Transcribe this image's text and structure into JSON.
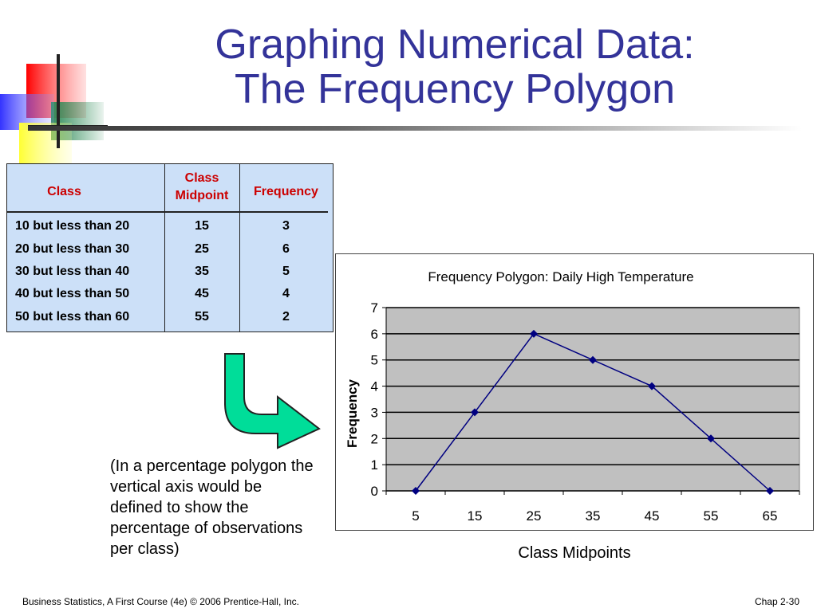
{
  "slide": {
    "title_line1": "Graphing Numerical Data:",
    "title_line2": "The Frequency Polygon",
    "note": "(In a percentage polygon the vertical axis would be defined to show the percentage of observations per class)",
    "footer_left": "Business Statistics, A First Course (4e) © 2006 Prentice-Hall, Inc.",
    "footer_right": "Chap 2-30"
  },
  "table": {
    "headers": {
      "class": "Class",
      "midpoint_line1": "Class",
      "midpoint_line2": "Midpoint",
      "frequency": "Frequency"
    },
    "rows": [
      {
        "class": "10 but less than 20",
        "midpoint": "15",
        "frequency": "3"
      },
      {
        "class": "20 but less than 30",
        "midpoint": "25",
        "frequency": "6"
      },
      {
        "class": "30 but less than 40",
        "midpoint": "35",
        "frequency": "5"
      },
      {
        "class": "40 but less than 50",
        "midpoint": "45",
        "frequency": "4"
      },
      {
        "class": "50 but less than 60",
        "midpoint": "55",
        "frequency": "2"
      }
    ]
  },
  "chart_data": {
    "type": "line",
    "title": "Frequency Polygon: Daily High Temperature",
    "xlabel": "Class Midpoints",
    "ylabel": "Frequency",
    "categories": [
      "5",
      "15",
      "25",
      "35",
      "45",
      "55",
      "65"
    ],
    "values": [
      0,
      3,
      6,
      5,
      4,
      2,
      0
    ],
    "ylim": [
      0,
      7
    ],
    "yticks": [
      0,
      1,
      2,
      3,
      4,
      5,
      6,
      7
    ],
    "grid": true,
    "legend": "none",
    "colors": {
      "line": "#000080",
      "plot_bg": "#c0c0c0",
      "grid": "#000000"
    }
  }
}
